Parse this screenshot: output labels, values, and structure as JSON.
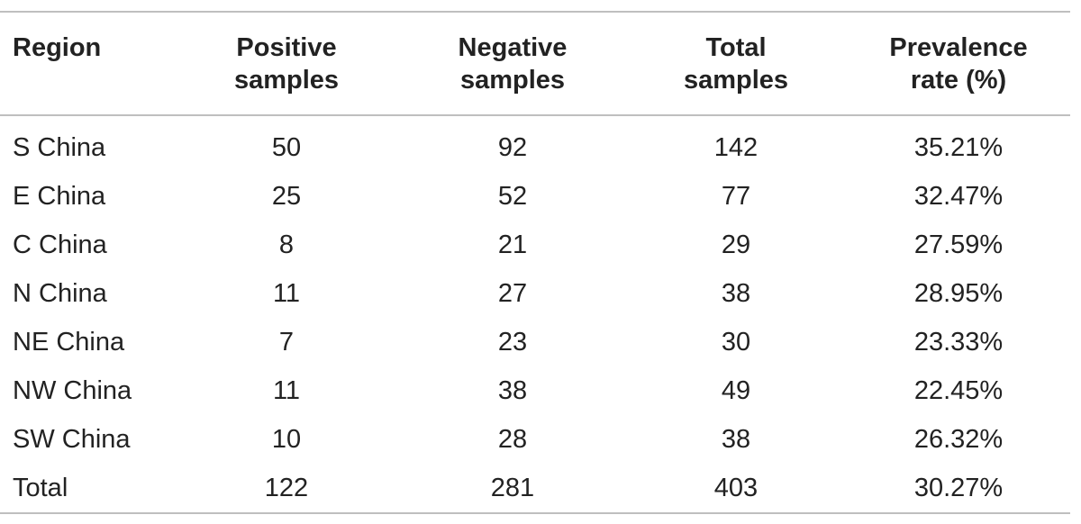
{
  "table": {
    "headers": {
      "region": "Region",
      "positive": [
        "Positive",
        "samples"
      ],
      "negative": [
        "Negative",
        "samples"
      ],
      "total": [
        "Total",
        "samples"
      ],
      "prevalence": [
        "Prevalence",
        "rate (%)"
      ]
    },
    "rows": [
      {
        "region": "S China",
        "positive": "50",
        "negative": "92",
        "total": "142",
        "prevalence": "35.21%"
      },
      {
        "region": "E China",
        "positive": "25",
        "negative": "52",
        "total": "77",
        "prevalence": "32.47%"
      },
      {
        "region": "C China",
        "positive": "8",
        "negative": "21",
        "total": "29",
        "prevalence": "27.59%"
      },
      {
        "region": "N China",
        "positive": "11",
        "negative": "27",
        "total": "38",
        "prevalence": "28.95%"
      },
      {
        "region": "NE China",
        "positive": "7",
        "negative": "23",
        "total": "30",
        "prevalence": "23.33%"
      },
      {
        "region": "NW China",
        "positive": "11",
        "negative": "38",
        "total": "49",
        "prevalence": "22.45%"
      },
      {
        "region": "SW China",
        "positive": "10",
        "negative": "28",
        "total": "38",
        "prevalence": "26.32%"
      },
      {
        "region": "Total",
        "positive": "122",
        "negative": "281",
        "total": "403",
        "prevalence": "30.27%"
      }
    ]
  }
}
